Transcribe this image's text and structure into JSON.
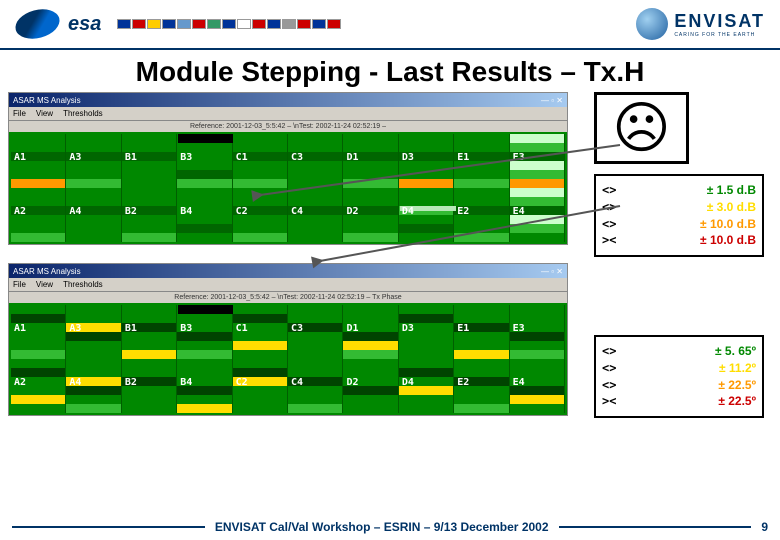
{
  "header": {
    "esa_label": "esa",
    "flag_colors": [
      "#003399",
      "#cc0000",
      "#ffcc00",
      "#003399",
      "#6699cc",
      "#cc0000",
      "#339966",
      "#003399",
      "#ffffff",
      "#cc0000",
      "#003399",
      "#999999",
      "#cc0000",
      "#003399",
      "#cc0000"
    ],
    "envisat_label": "ENVISAT",
    "envisat_sub": "CARING FOR THE EARTH"
  },
  "title": "Module Stepping - Last Results – Tx.H",
  "face": "☹",
  "windows": {
    "win_title": "ASAR MS Analysis",
    "menu": [
      "File",
      "View",
      "Thresholds"
    ],
    "ref_text_top": "Reference: 2001-12-03_5:5:42 – \\nTest: 2002-11-24 02:52:19 –",
    "ref_text_bot": "Reference: 2001-12-03_5:5:42 – \\nTest: 2002-11-24 02:52:19 –    Tx Phase"
  },
  "module_labels_row1": [
    "A1",
    "A3",
    "B1",
    "B3",
    "C1",
    "C3",
    "D1",
    "D3",
    "E1",
    "E3"
  ],
  "module_labels_row2": [
    "A2",
    "A4",
    "B2",
    "B4",
    "C2",
    "C4",
    "D2",
    "D4",
    "E2",
    "E4"
  ],
  "legend_top": [
    {
      "sym": "<>",
      "text": "±  1.5 d.B",
      "color": "#008800"
    },
    {
      "sym": "<>",
      "text": "±  3.0 d.B",
      "color": "#ffdd00"
    },
    {
      "sym": "<>",
      "text": "± 10.0 d.B",
      "color": "#ff9900"
    },
    {
      "sym": "><",
      "text": "± 10.0 d.B",
      "color": "#cc0000"
    }
  ],
  "legend_bot": [
    {
      "sym": "<>",
      "text": "±  5. 65º",
      "color": "#008800"
    },
    {
      "sym": "<>",
      "text": "± 11.2º",
      "color": "#ffdd00"
    },
    {
      "sym": "<>",
      "text": "± 22.5º",
      "color": "#ff9900"
    },
    {
      "sym": "><",
      "text": "± 22.5º",
      "color": "#cc0000"
    }
  ],
  "footer_text": "ENVISAT Cal/Val Workshop – ESRIN – 9/13 December 2002",
  "page_number": "9",
  "colors": {
    "green": "#008800",
    "dgreen": "#006600",
    "lgreen": "#33bb33",
    "yellow": "#ffdd00",
    "orange": "#ff9900",
    "black": "#000000",
    "dgrn2": "#004400",
    "pale": "#ccffcc",
    "band_light": "#b8e8b8"
  },
  "heatmap_top": {
    "row1": [
      [
        "green",
        "green",
        "dgreen",
        "green",
        "green",
        "orange"
      ],
      [
        "green",
        "green",
        "dgreen",
        "green",
        "green",
        "lgreen"
      ],
      [
        "green",
        "green",
        "dgreen",
        "green",
        "green",
        "green"
      ],
      [
        "green",
        "green",
        "green",
        "green",
        "dgreen",
        "lgreen"
      ],
      [
        "green",
        "green",
        "dgreen",
        "green",
        "green",
        "lgreen"
      ],
      [
        "green",
        "green",
        "dgreen",
        "green",
        "green",
        "green"
      ],
      [
        "green",
        "green",
        "dgreen",
        "green",
        "green",
        "lgreen"
      ],
      [
        "green",
        "green",
        "dgreen",
        "green",
        "green",
        "orange"
      ],
      [
        "green",
        "green",
        "dgreen",
        "green",
        "green",
        "lgreen"
      ],
      [
        "pale",
        "lgreen",
        "dgreen",
        "pale",
        "lgreen",
        "orange"
      ]
    ],
    "row2": [
      [
        "green",
        "green",
        "dgreen",
        "green",
        "green",
        "lgreen"
      ],
      [
        "green",
        "green",
        "dgreen",
        "green",
        "green",
        "green"
      ],
      [
        "green",
        "green",
        "dgreen",
        "green",
        "green",
        "lgreen"
      ],
      [
        "green",
        "green",
        "green",
        "green",
        "dgreen",
        "green"
      ],
      [
        "green",
        "green",
        "dgreen",
        "green",
        "green",
        "lgreen"
      ],
      [
        "green",
        "green",
        "dgreen",
        "green",
        "green",
        "green"
      ],
      [
        "green",
        "green",
        "dgreen",
        "green",
        "green",
        "lgreen"
      ],
      [
        "green",
        "green",
        "lgreen",
        "green",
        "dgreen",
        "green"
      ],
      [
        "green",
        "green",
        "dgreen",
        "green",
        "green",
        "lgreen"
      ],
      [
        "pale",
        "lgreen",
        "dgreen",
        "pale",
        "lgreen",
        "green"
      ]
    ]
  },
  "heatmap_bot": {
    "row1": [
      [
        "green",
        "dgrn2",
        "green",
        "green",
        "green",
        "lgreen"
      ],
      [
        "green",
        "green",
        "yellow",
        "dgrn2",
        "green",
        "green"
      ],
      [
        "green",
        "green",
        "dgrn2",
        "green",
        "green",
        "yellow"
      ],
      [
        "green",
        "green",
        "green",
        "dgrn2",
        "green",
        "lgreen"
      ],
      [
        "green",
        "dgrn2",
        "green",
        "green",
        "yellow",
        "green"
      ],
      [
        "green",
        "green",
        "dgrn2",
        "green",
        "green",
        "green"
      ],
      [
        "green",
        "green",
        "green",
        "dgrn2",
        "yellow",
        "lgreen"
      ],
      [
        "green",
        "dgrn2",
        "green",
        "green",
        "green",
        "green"
      ],
      [
        "green",
        "green",
        "dgrn2",
        "green",
        "green",
        "yellow"
      ],
      [
        "green",
        "green",
        "green",
        "dgrn2",
        "green",
        "lgreen"
      ]
    ],
    "row2": [
      [
        "green",
        "dgrn2",
        "green",
        "green",
        "yellow",
        "green"
      ],
      [
        "green",
        "green",
        "yellow",
        "dgrn2",
        "green",
        "lgreen"
      ],
      [
        "green",
        "green",
        "dgrn2",
        "green",
        "green",
        "green"
      ],
      [
        "green",
        "green",
        "green",
        "dgrn2",
        "green",
        "yellow"
      ],
      [
        "green",
        "dgrn2",
        "yellow",
        "green",
        "green",
        "green"
      ],
      [
        "green",
        "green",
        "dgrn2",
        "green",
        "green",
        "lgreen"
      ],
      [
        "green",
        "green",
        "green",
        "dgrn2",
        "green",
        "green"
      ],
      [
        "green",
        "dgrn2",
        "green",
        "yellow",
        "green",
        "green"
      ],
      [
        "green",
        "green",
        "dgrn2",
        "green",
        "green",
        "lgreen"
      ],
      [
        "green",
        "green",
        "green",
        "dgrn2",
        "yellow",
        "green"
      ]
    ]
  },
  "overlays": {
    "top_blackband": {
      "row": 0,
      "cell": 3,
      "stripe": 0
    },
    "bot_blackband": {
      "row": 0,
      "cell": 3,
      "stripe": 0
    },
    "top_lightband": {
      "row": 1,
      "cell": 7,
      "stripe": 2
    }
  }
}
